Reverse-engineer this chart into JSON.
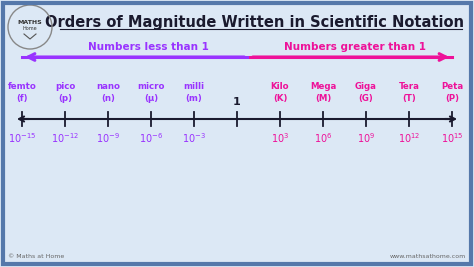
{
  "title": "Orders of Magnitude Written in Scientific Notation",
  "bg_color": "#dce8f5",
  "border_color": "#5578aa",
  "title_color": "#1a1a2e",
  "arrow_left_color": "#9933ff",
  "arrow_right_color": "#ee1199",
  "number_line_color": "#1a1a2e",
  "tick_color": "#1a1a2e",
  "label_left_text": "Numbers less than 1",
  "label_right_text": "Numbers greater than 1",
  "prefixes_left": [
    "femto\n(f)",
    "pico\n(p)",
    "nano\n(n)",
    "micro\n(μ)",
    "milli\n(m)"
  ],
  "prefixes_right": [
    "Kilo\n(K)",
    "Mega\n(M)",
    "Giga\n(G)",
    "Tera\n(T)",
    "Peta\n(P)"
  ],
  "exponents_left": [
    -15,
    -12,
    -9,
    -6,
    -3
  ],
  "exponents_right": [
    3,
    6,
    9,
    12,
    15
  ],
  "center_label": "1",
  "footer_left": "© Maths at Home",
  "footer_right": "www.mathsathome.com",
  "tick_positions": [
    -15,
    -12,
    -9,
    -6,
    -3,
    0,
    3,
    6,
    9,
    12,
    15
  ]
}
